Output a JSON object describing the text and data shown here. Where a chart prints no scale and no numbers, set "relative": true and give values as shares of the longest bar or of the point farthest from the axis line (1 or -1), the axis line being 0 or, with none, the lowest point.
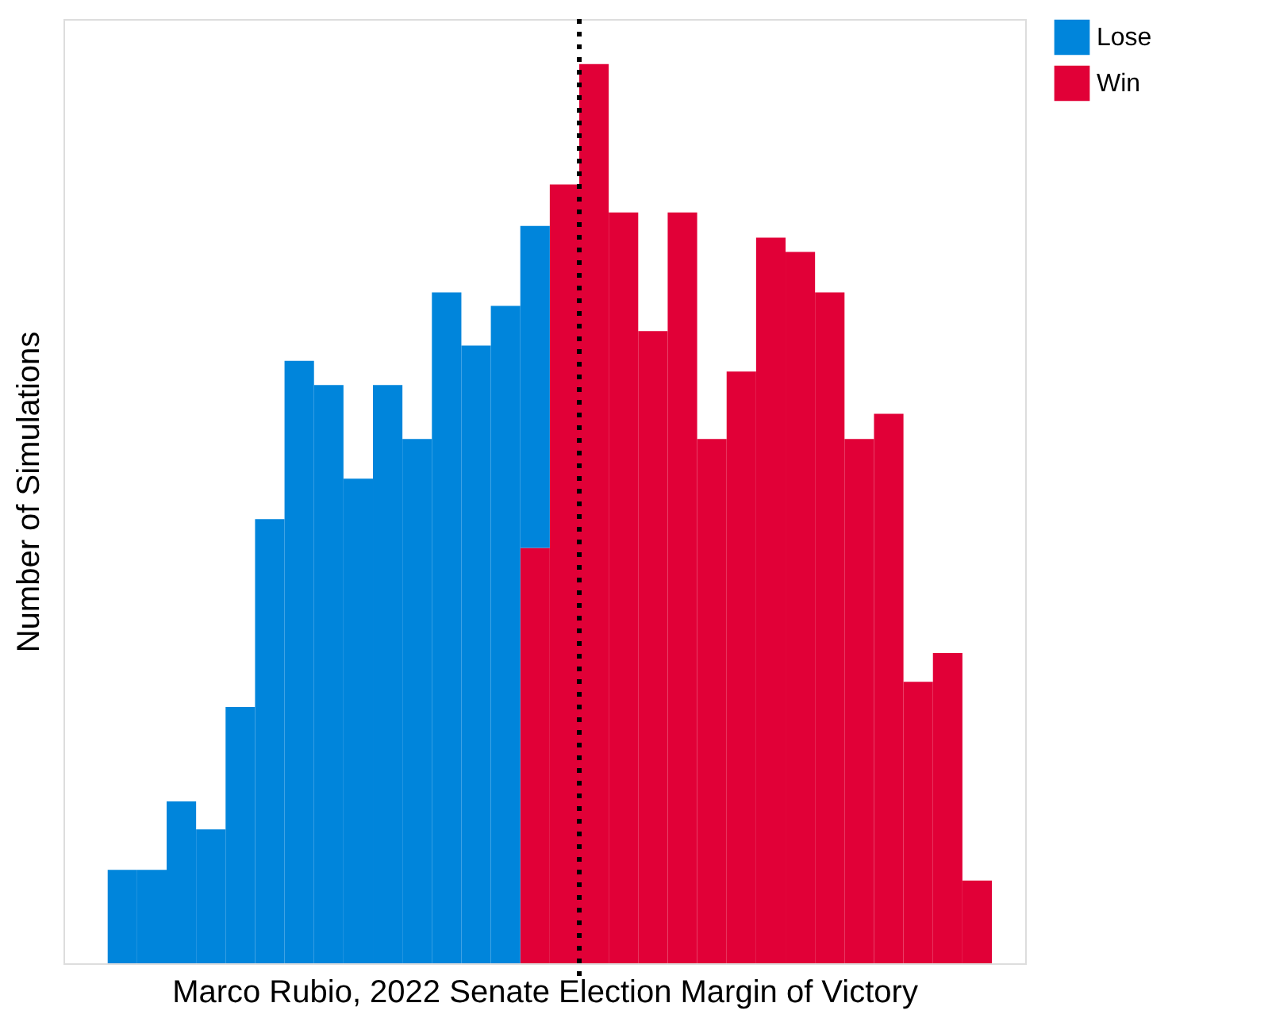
{
  "chart_data": {
    "type": "bar",
    "stacked": true,
    "relative": true,
    "xlabel": "Marco Rubio, 2022 Senate Election Margin of Victory",
    "ylabel": "Number of Simulations",
    "categories": [
      null,
      null,
      null,
      null,
      null,
      null,
      null,
      null,
      null,
      null,
      null,
      null,
      null,
      null,
      null,
      null,
      null,
      null,
      null,
      null,
      null,
      null,
      null,
      null,
      null,
      null,
      null,
      null,
      null,
      null
    ],
    "series": [
      {
        "name": "Win",
        "color": "#e10037",
        "values": [
          null,
          null,
          null,
          null,
          null,
          null,
          null,
          null,
          null,
          null,
          null,
          null,
          null,
          null,
          0.462,
          0.866,
          1.0,
          0.835,
          0.703,
          0.835,
          0.583,
          0.658,
          0.807,
          0.791,
          0.746,
          0.583,
          0.611,
          0.313,
          0.345,
          0.092
        ]
      },
      {
        "name": "Lose",
        "color": "#0085db",
        "values": [
          0.104,
          0.104,
          0.18,
          0.149,
          0.285,
          0.494,
          0.67,
          0.643,
          0.539,
          0.643,
          0.583,
          0.746,
          0.687,
          0.731,
          0.358,
          null,
          null,
          null,
          null,
          null,
          null,
          null,
          null,
          null,
          null,
          null,
          null,
          null,
          null,
          null
        ]
      }
    ],
    "legend": "right"
  }
}
